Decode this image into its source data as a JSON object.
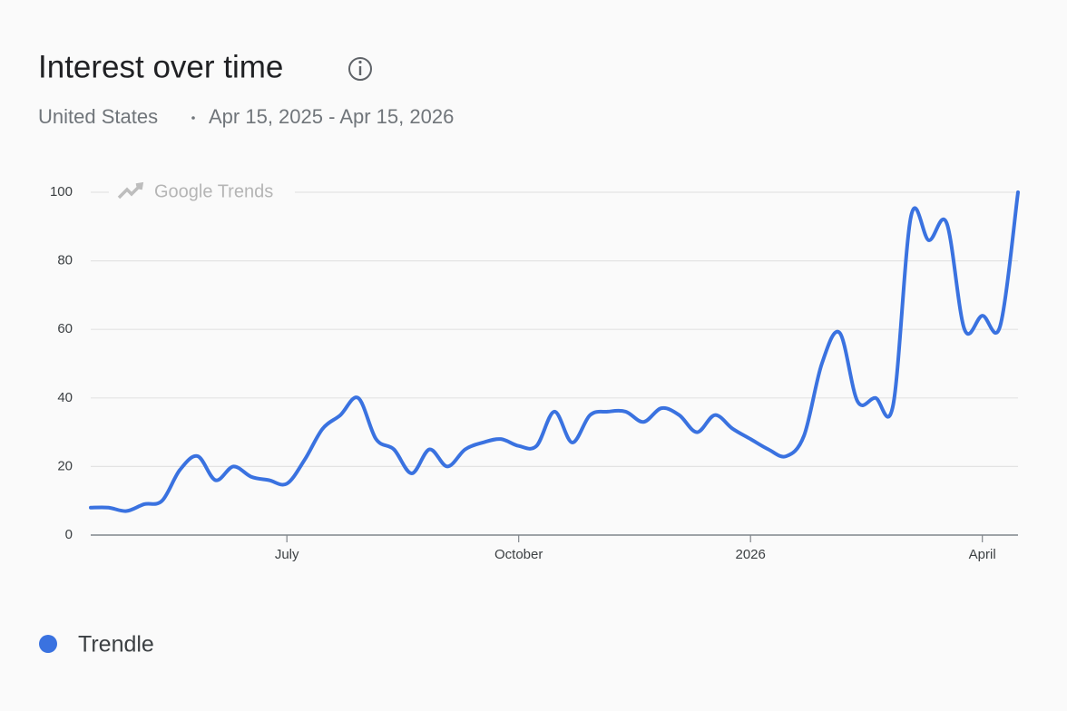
{
  "chart_data": {
    "type": "line",
    "title": "Interest over time",
    "subtitle": [
      "United States",
      "Apr 15, 2025 - Apr 15, 2026"
    ],
    "watermark": "Google Trends",
    "categories": [
      null,
      null,
      null,
      null,
      null,
      null,
      null,
      null,
      null,
      null,
      null,
      "July",
      null,
      null,
      null,
      null,
      null,
      null,
      null,
      null,
      null,
      null,
      null,
      null,
      "October",
      null,
      null,
      null,
      null,
      null,
      null,
      null,
      null,
      null,
      null,
      null,
      null,
      "2026",
      null,
      null,
      null,
      null,
      null,
      null,
      null,
      null,
      null,
      null,
      null,
      null,
      "April",
      null,
      null
    ],
    "series": [
      {
        "name": "Trendle",
        "color": "#3a72e0",
        "values": [
          8,
          8,
          7,
          9,
          10,
          19,
          23,
          16,
          20,
          17,
          16,
          15,
          22,
          31,
          35,
          40,
          28,
          25,
          18,
          25,
          20,
          25,
          27,
          28,
          26,
          26,
          36,
          27,
          35,
          36,
          36,
          33,
          37,
          35,
          30,
          35,
          31,
          28,
          25,
          23,
          29,
          50,
          59,
          39,
          40,
          38,
          93,
          86,
          91,
          60,
          64,
          61,
          100
        ]
      }
    ],
    "ylim": [
      0,
      100
    ],
    "yticks": [
      0,
      20,
      40,
      60,
      80,
      100
    ],
    "grid": true
  }
}
